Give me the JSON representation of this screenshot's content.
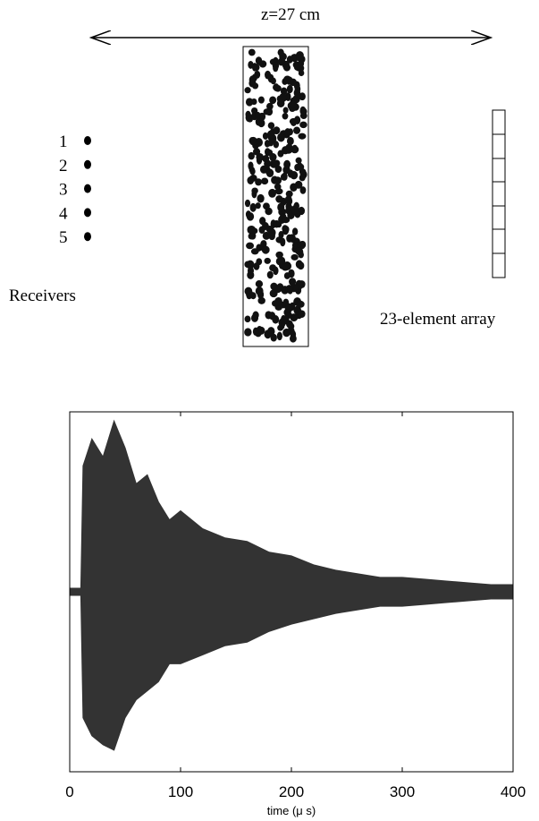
{
  "diagram": {
    "distance_label": "z=27 cm",
    "receiver_numbers": [
      "1",
      "2",
      "3",
      "4",
      "5"
    ],
    "receivers_label": "Receivers",
    "array_label": "23-element array"
  },
  "chart_data": {
    "type": "area",
    "xlabel": "time (μ s)",
    "x": [
      0,
      10,
      12,
      20,
      30,
      40,
      50,
      60,
      70,
      80,
      90,
      100,
      120,
      140,
      160,
      180,
      200,
      220,
      240,
      260,
      280,
      300,
      320,
      340,
      360,
      380,
      400
    ],
    "series": [
      {
        "color": "#333333",
        "values": [
          0.02,
          0.02,
          0.7,
          0.85,
          0.75,
          0.95,
          0.8,
          0.6,
          0.65,
          0.5,
          0.4,
          0.45,
          0.35,
          0.3,
          0.28,
          0.22,
          0.2,
          0.15,
          0.12,
          0.1,
          0.08,
          0.08,
          0.07,
          0.06,
          0.05,
          0.04,
          0.04
        ]
      },
      {
        "color": "#333333",
        "values": [
          -0.02,
          -0.02,
          -0.7,
          -0.8,
          -0.85,
          -0.88,
          -0.7,
          -0.6,
          -0.55,
          -0.5,
          -0.4,
          -0.4,
          -0.35,
          -0.3,
          -0.28,
          -0.22,
          -0.18,
          -0.15,
          -0.12,
          -0.1,
          -0.08,
          -0.08,
          -0.07,
          -0.06,
          -0.05,
          -0.04,
          -0.04
        ]
      }
    ],
    "xlim": [
      0,
      400
    ],
    "xticks": [
      0,
      100,
      200,
      300,
      400
    ],
    "ylim": [
      -1,
      1
    ]
  }
}
